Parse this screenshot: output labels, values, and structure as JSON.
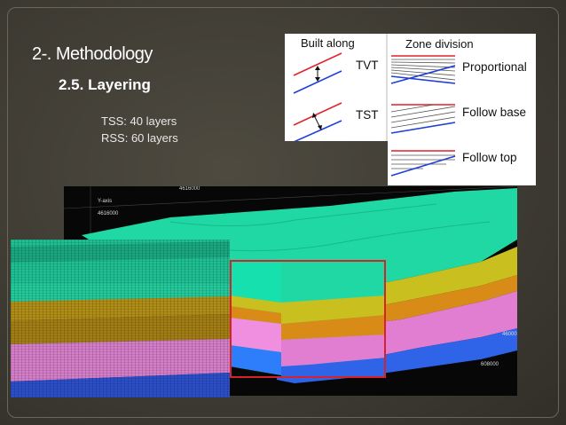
{
  "slide": {
    "title": "2-. Methodology",
    "subtitle": "2.5. Layering",
    "lines": [
      "TSS: 40 layers",
      "RSS: 60 layers"
    ]
  },
  "legend_built": {
    "heading": "Built along",
    "items": [
      "TVT",
      "TST"
    ]
  },
  "legend_zone": {
    "heading": "Zone division",
    "items": [
      "Proportional",
      "Follow base",
      "Follow top"
    ]
  },
  "model": {
    "axis_labels": [
      "4616000",
      "Y-axis",
      "4616000",
      "46000",
      "608000"
    ]
  },
  "colors": {
    "background": "#3f3c34",
    "top_line": "#e0222a",
    "base_line": "#1e3fd8",
    "highlight_box": "#d6222a",
    "zone_teal": "#1fd9a6",
    "zone_yellow": "#c9c020",
    "zone_orange": "#d98b17",
    "zone_pink": "#e27ed2",
    "zone_blue": "#2f63e8"
  }
}
